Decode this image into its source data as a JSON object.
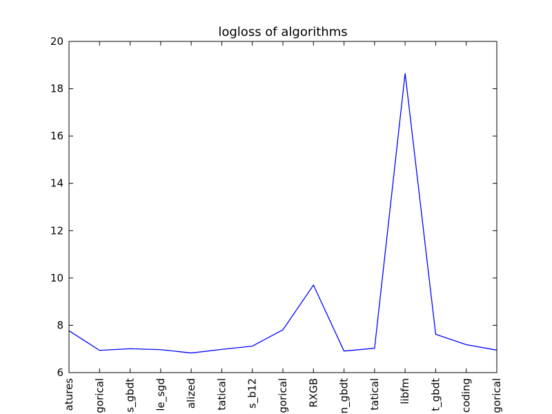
{
  "chart_data": {
    "type": "line",
    "title": "logloss of algorithms",
    "xlabel": "",
    "ylabel": "",
    "ylim": [
      6,
      20
    ],
    "yticks": [
      6,
      8,
      10,
      12,
      14,
      16,
      18,
      20
    ],
    "grid": false,
    "x_tick_labels_visible": [
      "atures",
      "gorical",
      "s_gbdt",
      "le_sgd",
      "alized",
      "tatical",
      "s_b12",
      "gorical",
      "RXGB",
      "n_gbdt",
      "tatical",
      "libfm",
      "t_gbdt",
      "coding",
      "gorical"
    ],
    "series": [
      {
        "color": "#0000ff",
        "values": [
          7.77,
          6.94,
          7.01,
          6.97,
          6.83,
          6.98,
          7.12,
          7.81,
          9.7,
          6.91,
          7.03,
          18.65,
          7.62,
          7.18,
          6.95
        ]
      }
    ]
  }
}
